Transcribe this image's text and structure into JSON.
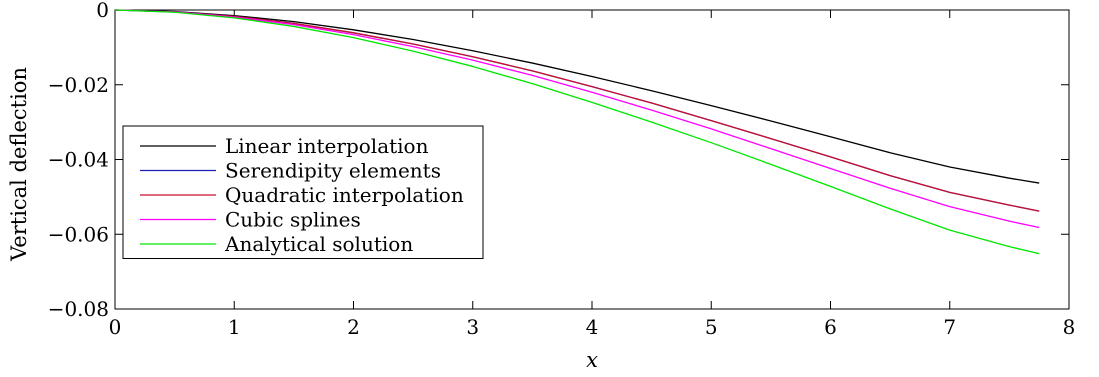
{
  "chart_data": {
    "type": "line",
    "xlabel": "x",
    "ylabel": "Vertical deflection",
    "xlim": [
      0,
      8
    ],
    "ylim": [
      -0.08,
      0
    ],
    "x_ticks": [
      0,
      1,
      2,
      3,
      4,
      5,
      6,
      7,
      8
    ],
    "x_tick_labels": [
      "0",
      "1",
      "2",
      "3",
      "4",
      "5",
      "6",
      "7",
      "8"
    ],
    "y_ticks": [
      0,
      -0.02,
      -0.04,
      -0.06,
      -0.08
    ],
    "y_tick_labels": [
      "0",
      "−0.02",
      "−0.04",
      "−0.06",
      "−0.08"
    ],
    "grid": false,
    "legend_position": "bottom-left",
    "x": [
      0,
      0.5,
      1,
      1.5,
      2,
      2.5,
      3,
      3.5,
      4,
      4.5,
      5,
      5.5,
      6,
      6.5,
      7,
      7.5,
      7.75
    ],
    "series": [
      {
        "name": "Linear interpolation",
        "color": "#000000",
        "values": [
          0,
          -0.0004,
          -0.0015,
          -0.0031,
          -0.0053,
          -0.0079,
          -0.0109,
          -0.0142,
          -0.0178,
          -0.0216,
          -0.0256,
          -0.0297,
          -0.0339,
          -0.0382,
          -0.042,
          -0.045,
          -0.0463
        ]
      },
      {
        "name": "Serendipity elements",
        "color": "#1f1fb4",
        "values": [
          0,
          -0.0005,
          -0.0017,
          -0.0036,
          -0.0061,
          -0.0091,
          -0.0125,
          -0.0163,
          -0.0205,
          -0.0249,
          -0.0296,
          -0.0344,
          -0.0393,
          -0.0443,
          -0.0488,
          -0.0522,
          -0.0538
        ]
      },
      {
        "name": "Quadratic interpolation",
        "color": "#c8102e",
        "values": [
          0,
          -0.0005,
          -0.0017,
          -0.0036,
          -0.0061,
          -0.0091,
          -0.0125,
          -0.0163,
          -0.0205,
          -0.0249,
          -0.0296,
          -0.0344,
          -0.0393,
          -0.0443,
          -0.0488,
          -0.0522,
          -0.0538
        ]
      },
      {
        "name": "Cubic splines",
        "color": "#ff00ff",
        "values": [
          0,
          -0.0005,
          -0.0019,
          -0.0039,
          -0.0066,
          -0.0098,
          -0.0134,
          -0.0175,
          -0.022,
          -0.0268,
          -0.0318,
          -0.0371,
          -0.0424,
          -0.0477,
          -0.0526,
          -0.0565,
          -0.0582
        ]
      },
      {
        "name": "Analytical solution",
        "color": "#00e600",
        "values": [
          0,
          -0.0006,
          -0.0021,
          -0.0044,
          -0.0074,
          -0.011,
          -0.0151,
          -0.0197,
          -0.0247,
          -0.03,
          -0.0355,
          -0.0413,
          -0.0472,
          -0.0532,
          -0.0589,
          -0.0633,
          -0.0652
        ]
      }
    ]
  }
}
